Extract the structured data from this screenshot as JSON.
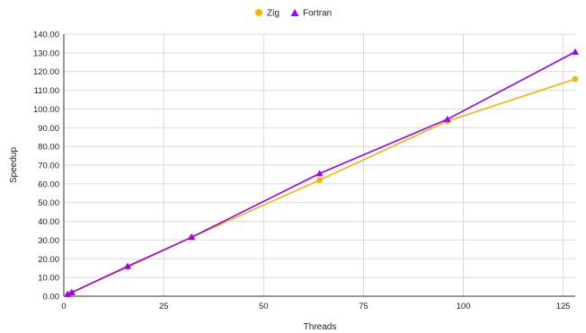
{
  "chart_data": {
    "type": "line",
    "xlabel": "Threads",
    "ylabel": "Speedup",
    "xlim": [
      0,
      128
    ],
    "ylim": [
      0,
      140
    ],
    "xticks": [
      0,
      25,
      50,
      75,
      100,
      125
    ],
    "yticks": [
      0,
      10,
      20,
      30,
      40,
      50,
      60,
      70,
      80,
      90,
      100,
      110,
      120,
      130,
      140
    ],
    "ytick_format": "2 decimals",
    "grid": true,
    "legend_position": "top",
    "series": [
      {
        "name": "Zig",
        "color": "#f4b400",
        "marker": "circle",
        "x": [
          1,
          2,
          16,
          32,
          64,
          96,
          128
        ],
        "y": [
          1.0,
          2.0,
          15.5,
          31.5,
          62.0,
          93.5,
          116.0
        ]
      },
      {
        "name": "Fortran",
        "color": "#9900ff",
        "marker": "triangle",
        "x": [
          1,
          2,
          16,
          32,
          64,
          96,
          128
        ],
        "y": [
          1.0,
          2.0,
          16.0,
          31.5,
          65.5,
          94.5,
          130.5
        ]
      }
    ]
  }
}
